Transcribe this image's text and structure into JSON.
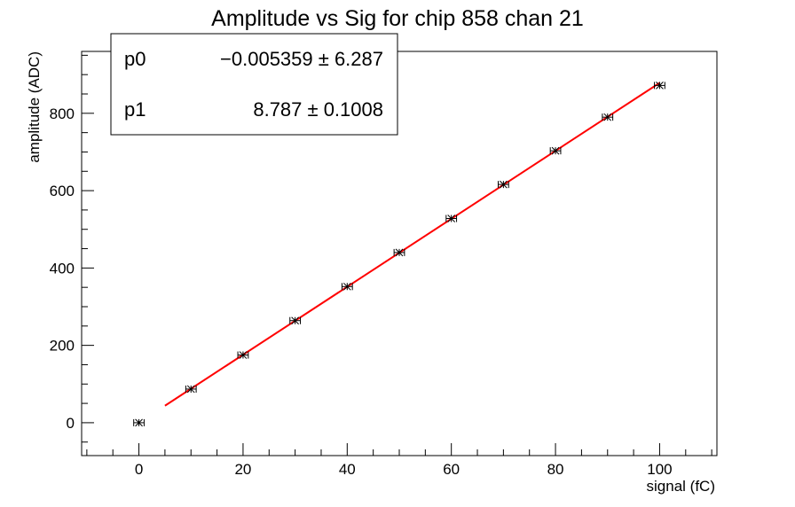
{
  "chart_data": {
    "type": "scatter",
    "title": "Amplitude vs Sig for chip 858 chan 21",
    "xlabel": "signal (fC)",
    "ylabel": "amplitude (ADC)",
    "xlim": [
      -11,
      111
    ],
    "ylim": [
      -85,
      960
    ],
    "x_ticks": [
      0,
      20,
      40,
      60,
      80,
      100
    ],
    "y_ticks": [
      0,
      200,
      400,
      600,
      800
    ],
    "grid": false,
    "series": [
      {
        "name": "",
        "marker": "star",
        "color": "#000000",
        "x": [
          0,
          10,
          20,
          30,
          40,
          50,
          60,
          70,
          80,
          90,
          100
        ],
        "y": [
          0,
          87,
          175,
          264,
          352,
          440,
          528,
          616,
          703,
          790,
          872
        ],
        "x_err": 1
      }
    ],
    "fit": {
      "color": "#ff0000",
      "x_range": [
        5,
        100
      ],
      "p0": -0.005359,
      "p1": 8.787
    },
    "stats_box": {
      "placement": "top-left",
      "rows": [
        {
          "name": "p0",
          "value": "−0.005359 ± 6.287"
        },
        {
          "name": "p1",
          "value": "8.787 ± 0.1008"
        }
      ]
    }
  }
}
